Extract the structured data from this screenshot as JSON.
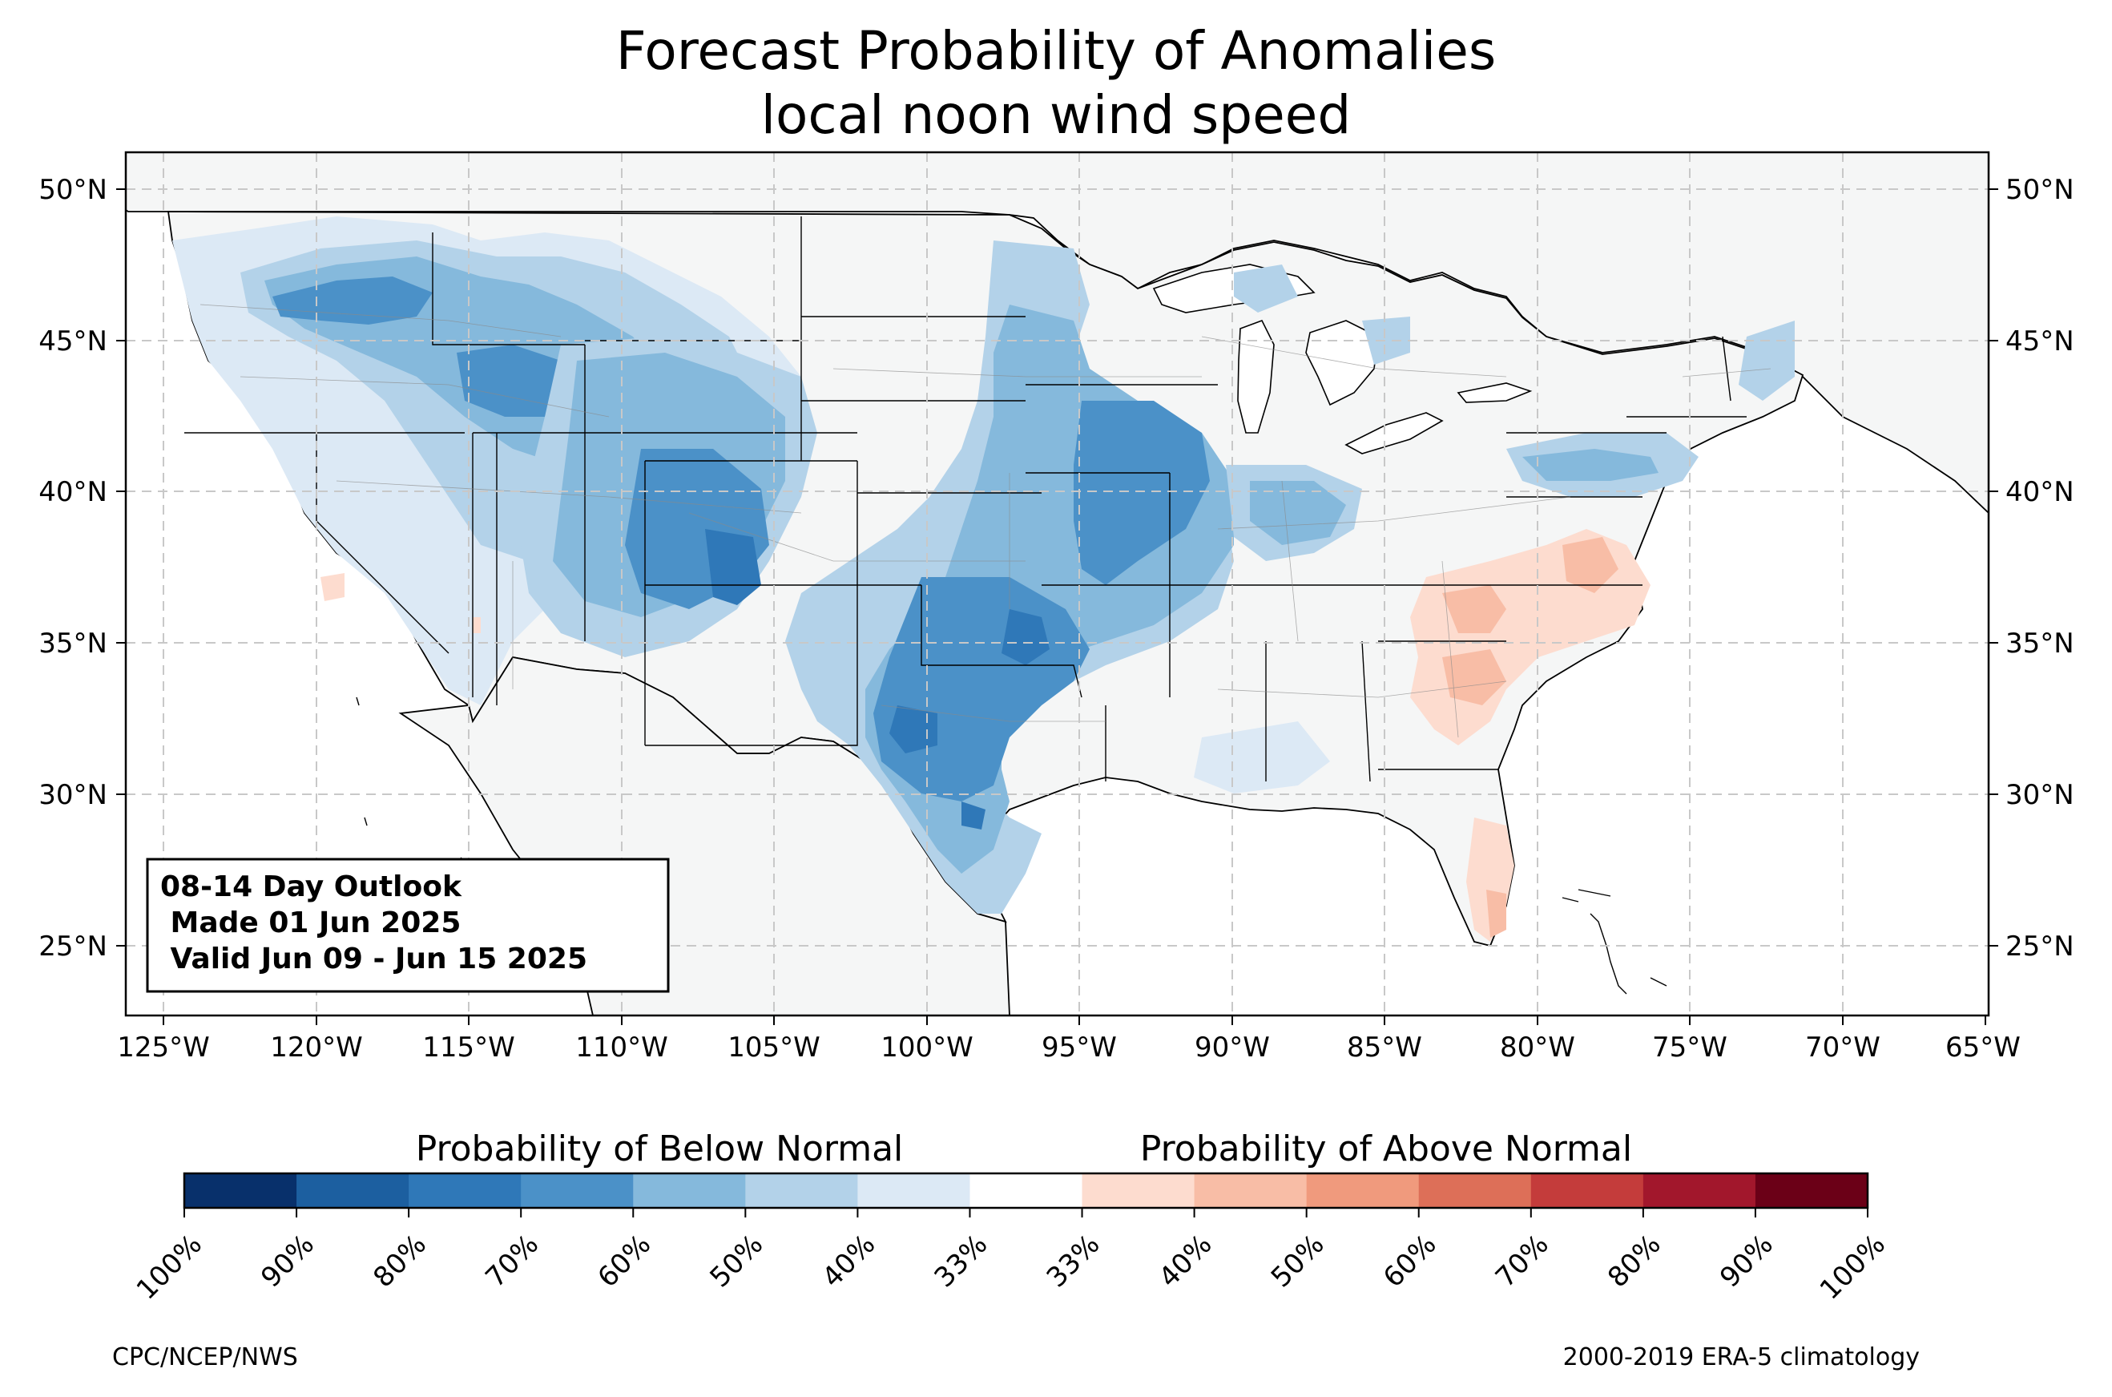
{
  "title": {
    "line1": "Forecast Probability of Anomalies",
    "line2": "local noon wind speed"
  },
  "map": {
    "lat_labels": [
      "50°N",
      "45°N",
      "40°N",
      "35°N",
      "30°N",
      "25°N"
    ],
    "lon_labels": [
      "125°W",
      "120°W",
      "115°W",
      "110°W",
      "105°W",
      "100°W",
      "95°W",
      "90°W",
      "85°W",
      "80°W",
      "75°W",
      "70°W",
      "65°W"
    ],
    "land_color": "#f5f6f6",
    "gridlines": true
  },
  "infobox": {
    "line1": "08-14 Day Outlook",
    "line2": " Made 01 Jun 2025",
    "line3": " Valid Jun 09 - Jun 15 2025"
  },
  "colorbar": {
    "below_label": "Probability of Below Normal",
    "above_label": "Probability of Above Normal",
    "below_colors": [
      "#08306b",
      "#1c5fa0",
      "#2f78b8",
      "#4b91c8",
      "#85b9dc",
      "#b3d2e9",
      "#dce9f5"
    ],
    "neutral_color": "#ffffff",
    "above_colors": [
      "#fddccf",
      "#f8bda6",
      "#f09a7d",
      "#dd6f58",
      "#c43c3b",
      "#a2172c",
      "#6b0017"
    ],
    "tick_labels": [
      "100%",
      "90%",
      "80%",
      "70%",
      "60%",
      "50%",
      "40%",
      "33%",
      "33%",
      "40%",
      "50%",
      "60%",
      "70%",
      "80%",
      "90%",
      "100%"
    ]
  },
  "footer": {
    "left": "CPC/NCEP/NWS",
    "right": "2000-2019 ERA-5 climatology"
  }
}
